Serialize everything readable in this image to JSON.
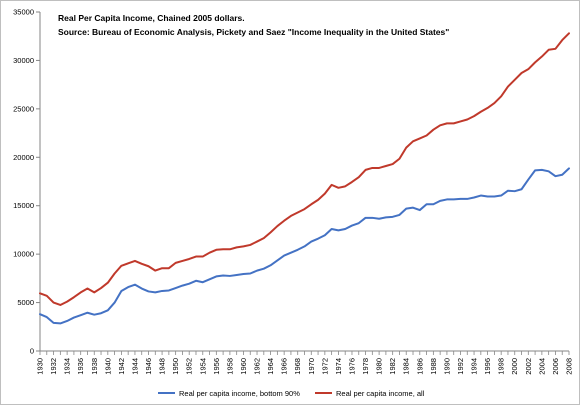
{
  "chart_data": {
    "type": "line",
    "title": "Real Per Capita Income, Chained 2005 dollars.",
    "subtitle": "Source: Bureau of Economic Analysis, Pickety and Saez \"Income Inequality in the United States\"",
    "xlabel": "",
    "ylabel": "",
    "x": [
      1930,
      1931,
      1932,
      1933,
      1934,
      1935,
      1936,
      1937,
      1938,
      1939,
      1940,
      1941,
      1942,
      1943,
      1944,
      1945,
      1946,
      1947,
      1948,
      1949,
      1950,
      1951,
      1952,
      1953,
      1954,
      1955,
      1956,
      1957,
      1958,
      1959,
      1960,
      1961,
      1962,
      1963,
      1964,
      1965,
      1966,
      1967,
      1968,
      1969,
      1970,
      1971,
      1972,
      1973,
      1974,
      1975,
      1976,
      1977,
      1978,
      1979,
      1980,
      1981,
      1982,
      1983,
      1984,
      1985,
      1986,
      1987,
      1988,
      1989,
      1990,
      1991,
      1992,
      1993,
      1994,
      1995,
      1996,
      1997,
      1998,
      1999,
      2000,
      2001,
      2002,
      2003,
      2004,
      2005,
      2006,
      2007,
      2008
    ],
    "x_tick_labels": [
      "1930",
      "1932",
      "1934",
      "1936",
      "1938",
      "1940",
      "1942",
      "1944",
      "1946",
      "1948",
      "1950",
      "1952",
      "1954",
      "1956",
      "1958",
      "1960",
      "1962",
      "1964",
      "1966",
      "1968",
      "1970",
      "1972",
      "1974",
      "1976",
      "1978",
      "1980",
      "1982",
      "1984",
      "1986",
      "1988",
      "1990",
      "1992",
      "1994",
      "1996",
      "1998",
      "2000",
      "2002",
      "2004",
      "2006",
      "2008"
    ],
    "y_tick_labels": [
      "0",
      "5000",
      "10000",
      "15000",
      "20000",
      "25000",
      "30000",
      "35000"
    ],
    "ylim": [
      0,
      35000
    ],
    "grid": false,
    "legend_position": "bottom",
    "series": [
      {
        "name": "Real per capita income, bottom 90%",
        "color": "#4472c4",
        "values": [
          3800,
          3500,
          2900,
          2850,
          3100,
          3450,
          3700,
          3950,
          3750,
          3900,
          4200,
          5000,
          6200,
          6600,
          6850,
          6450,
          6150,
          6050,
          6200,
          6250,
          6500,
          6750,
          6950,
          7250,
          7100,
          7400,
          7700,
          7800,
          7750,
          7850,
          7950,
          8000,
          8300,
          8500,
          8850,
          9350,
          9850,
          10150,
          10450,
          10800,
          11300,
          11600,
          11950,
          12600,
          12450,
          12600,
          12950,
          13200,
          13750,
          13750,
          13650,
          13800,
          13850,
          14050,
          14700,
          14800,
          14550,
          15150,
          15150,
          15500,
          15650,
          15650,
          15700,
          15700,
          15850,
          16050,
          15950,
          15950,
          16050,
          16550,
          16500,
          16700,
          17700,
          18650,
          18700,
          18550,
          18050,
          18200,
          18850
        ]
      },
      {
        "name": "Real per capita income, all",
        "color": "#c0392b",
        "values": [
          5950,
          5700,
          5000,
          4750,
          5100,
          5550,
          6050,
          6450,
          6050,
          6500,
          7050,
          8000,
          8800,
          9050,
          9300,
          9000,
          8750,
          8300,
          8550,
          8550,
          9100,
          9300,
          9500,
          9750,
          9750,
          10150,
          10450,
          10500,
          10500,
          10700,
          10800,
          10950,
          11300,
          11650,
          12250,
          12900,
          13450,
          13950,
          14300,
          14650,
          15150,
          15600,
          16250,
          17150,
          16850,
          17000,
          17450,
          17950,
          18700,
          18900,
          18900,
          19100,
          19300,
          19850,
          21000,
          21650,
          21950,
          22250,
          22850,
          23300,
          23500,
          23500,
          23700,
          23900,
          24250,
          24700,
          25100,
          25600,
          26300,
          27300,
          28000,
          28700,
          29100,
          29800,
          30400,
          31100,
          31200,
          32100,
          32800
        ]
      }
    ]
  }
}
